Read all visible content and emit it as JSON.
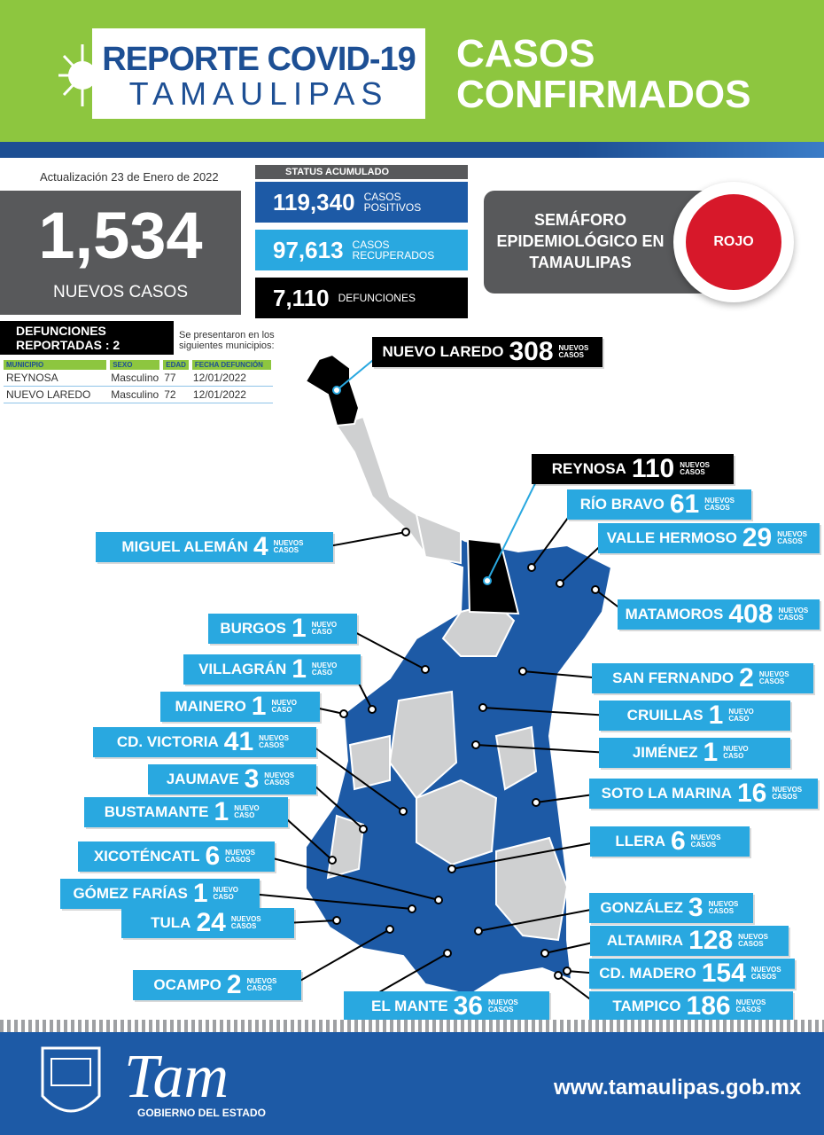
{
  "header": {
    "title_line1": "REPORTE COVID-19",
    "title_line2": "TAMAULIPAS",
    "section_line1": "CASOS",
    "section_line2": "CONFIRMADOS"
  },
  "update": "Actualización 23 de Enero de 2022",
  "new_cases": {
    "value": "1,534",
    "label": "NUEVOS CASOS"
  },
  "status": {
    "title": "STATUS ACUMULADO",
    "items": [
      {
        "value": "119,340",
        "label": "CASOS POSITIVOS"
      },
      {
        "value": "97,613",
        "label": "CASOS RECUPERADOS"
      },
      {
        "value": "7,110",
        "label": "DEFUNCIONES"
      }
    ]
  },
  "semaforo": {
    "label": "SEMÁFORO EPIDEMIOLÓGICO EN TAMAULIPAS",
    "status": "ROJO"
  },
  "deaths": {
    "title": "DEFUNCIONES REPORTADAS : 2",
    "note": "Se presentaron en los siguientes municipios:",
    "columns": [
      "MUNICIPIO",
      "SEXO",
      "EDAD",
      "FECHA DEFUNCIÓN"
    ],
    "rows": [
      [
        "REYNOSA",
        "Masculino",
        "77",
        "12/01/2022"
      ],
      [
        "NUEVO LAREDO",
        "Masculino",
        "72",
        "12/01/2022"
      ]
    ]
  },
  "municipalities": [
    {
      "name": "NUEVO LAREDO",
      "count": "308",
      "label": "NUEVOS CASOS"
    },
    {
      "name": "REYNOSA",
      "count": "110",
      "label": "NUEVOS CASOS"
    },
    {
      "name": "RÍO BRAVO",
      "count": "61",
      "label": "NUEVOS CASOS"
    },
    {
      "name": "VALLE HERMOSO",
      "count": "29",
      "label": "NUEVOS CASOS"
    },
    {
      "name": "MIGUEL ALEMÁN",
      "count": "4",
      "label": "NUEVOS CASOS"
    },
    {
      "name": "MATAMOROS",
      "count": "408",
      "label": "NUEVOS CASOS"
    },
    {
      "name": "BURGOS",
      "count": "1",
      "label": "NUEVO CASO"
    },
    {
      "name": "SAN FERNANDO",
      "count": "2",
      "label": "NUEVOS CASOS"
    },
    {
      "name": "VILLAGRÁN",
      "count": "1",
      "label": "NUEVO CASO"
    },
    {
      "name": "CRUILLAS",
      "count": "1",
      "label": "NUEVO CASO"
    },
    {
      "name": "MAINERO",
      "count": "1",
      "label": "NUEVO CASO"
    },
    {
      "name": "CD. VICTORIA",
      "count": "41",
      "label": "NUEVOS CASOS"
    },
    {
      "name": "JIMÉNEZ",
      "count": "1",
      "label": "NUEVO CASO"
    },
    {
      "name": "JAUMAVE",
      "count": "3",
      "label": "NUEVOS CASOS"
    },
    {
      "name": "SOTO LA MARINA",
      "count": "16",
      "label": "NUEVOS CASOS"
    },
    {
      "name": "BUSTAMANTE",
      "count": "1",
      "label": "NUEVO CASO"
    },
    {
      "name": "LLERA",
      "count": "6",
      "label": "NUEVOS CASOS"
    },
    {
      "name": "XICOTÉNCATL",
      "count": "6",
      "label": "NUEVOS CASOS"
    },
    {
      "name": "GÓMEZ FARÍAS",
      "count": "1",
      "label": "NUEVO CASO"
    },
    {
      "name": "GONZÁLEZ",
      "count": "3",
      "label": "NUEVOS CASOS"
    },
    {
      "name": "TULA",
      "count": "24",
      "label": "NUEVOS CASOS"
    },
    {
      "name": "ALTAMIRA",
      "count": "128",
      "label": "NUEVOS CASOS"
    },
    {
      "name": "CD. MADERO",
      "count": "154",
      "label": "NUEVOS CASOS"
    },
    {
      "name": "OCAMPO",
      "count": "2",
      "label": "NUEVOS CASOS"
    },
    {
      "name": "TAMPICO",
      "count": "186",
      "label": "NUEVOS CASOS"
    },
    {
      "name": "EL MANTE",
      "count": "36",
      "label": "NUEVOS CASOS"
    }
  ],
  "footer": {
    "brand": "Tam",
    "government": "GOBIERNO DEL ESTADO",
    "url": "www.tamaulipas.gob.mx"
  }
}
